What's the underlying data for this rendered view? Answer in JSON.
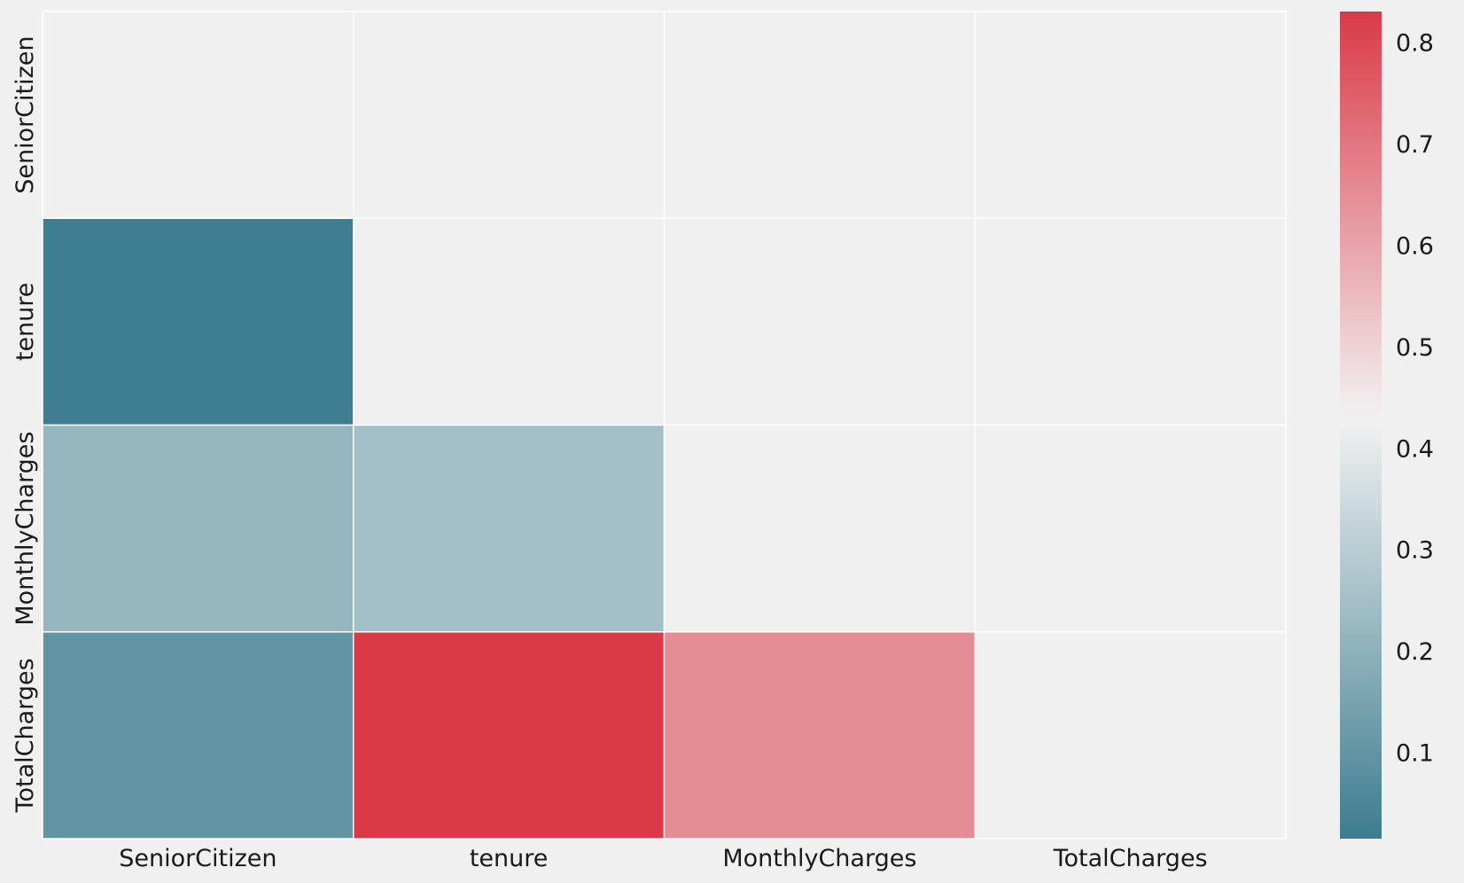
{
  "chart_data": {
    "type": "heatmap",
    "title": "",
    "xlabel": "",
    "ylabel": "",
    "x_categories": [
      "SeniorCitizen",
      "tenure",
      "MonthlyCharges",
      "TotalCharges"
    ],
    "y_categories": [
      "SeniorCitizen",
      "tenure",
      "MonthlyCharges",
      "TotalCharges"
    ],
    "mask": "upper_triangle_including_diagonal",
    "values": [
      [
        null,
        null,
        null,
        null
      ],
      [
        0.02,
        null,
        null,
        null
      ],
      [
        0.22,
        0.25,
        null,
        null
      ],
      [
        0.1,
        0.83,
        0.65,
        null
      ]
    ],
    "colorbar": {
      "vmin": 0.015,
      "vmax": 0.83,
      "center": 0.43,
      "ticks": [
        "0.1",
        "0.2",
        "0.3",
        "0.4",
        "0.5",
        "0.6",
        "0.7",
        "0.8"
      ],
      "colors": {
        "low": "#3d7d8f",
        "mid": "#f2f2f2",
        "high": "#da3a48"
      }
    },
    "background": "#f0f0f0",
    "grid_line_color": "#ffffff"
  }
}
